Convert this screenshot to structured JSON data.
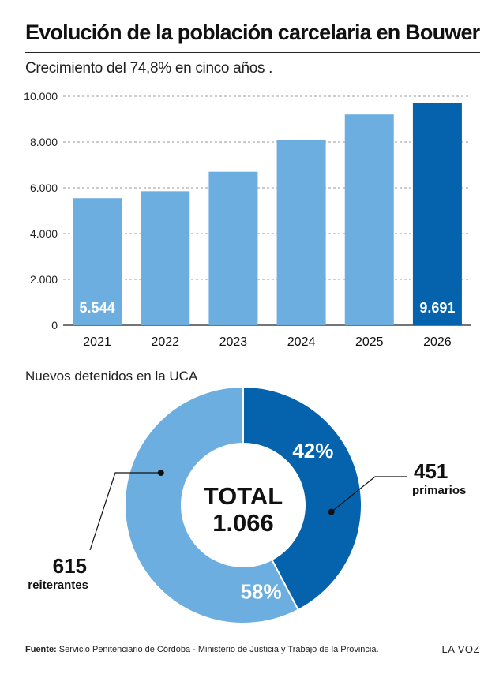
{
  "chart_data": [
    {
      "type": "bar",
      "title": "Evolución de la población carcelaria en Bouwer",
      "subtitle": "Crecimiento del 74,8% en cinco años .",
      "categories": [
        "2021",
        "2022",
        "2023",
        "2024",
        "2025",
        "2026"
      ],
      "values": [
        5544,
        5850,
        6700,
        8080,
        9200,
        9691
      ],
      "data_labels": [
        "5.544",
        "",
        "",
        "",
        "",
        "9.691"
      ],
      "highlight_index": 5,
      "colors": {
        "bar": "#6daee0",
        "highlight": "#0563ae",
        "grid": "#9a9a9a"
      },
      "ylim": [
        0,
        10000
      ],
      "yticks": [
        0,
        2000,
        4000,
        6000,
        8000,
        10000
      ],
      "ytick_labels": [
        "0",
        "2.000",
        "4.000",
        "6.000",
        "8.000",
        "10.000"
      ],
      "grid": true
    },
    {
      "type": "pie",
      "title": "Nuevos detenidos en la UCA",
      "center_text": [
        "TOTAL",
        "1.066"
      ],
      "slices": [
        {
          "value": 451,
          "percent_label": "42%",
          "count_label": "451",
          "label": "primarios",
          "color": "#0563ae"
        },
        {
          "value": 615,
          "percent_label": "58%",
          "count_label": "615",
          "label": "reiterantes",
          "color": "#6daee0"
        }
      ]
    }
  ],
  "footer": {
    "source_label": "Fuente:",
    "source_text": "Servicio Penitenciario de Córdoba - Ministerio de Justicia y Trabajo de la Provincia.",
    "brand": "LA VOZ"
  }
}
